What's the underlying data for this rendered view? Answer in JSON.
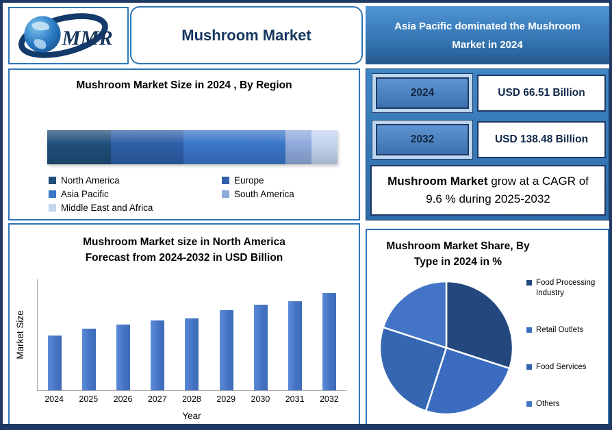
{
  "colors": {
    "frame": "#1F3864",
    "panelBorder": "#2E75B6",
    "bannerTop": "#4E94D4",
    "bannerBottom": "#2E6CA8",
    "statsTop": "#3F85C4",
    "statsBottom": "#2E6CA8",
    "buttonFrame": "#BDD7EE",
    "titleText": "#17375E",
    "barFill": "#4472C4"
  },
  "logo": {
    "text": "MMR"
  },
  "top": {
    "title": "Mushroom Market",
    "banner": "Asia Pacific dominated the Mushroom Market in 2024"
  },
  "stats": {
    "rows": [
      {
        "year": "2024",
        "value": "USD 66.51 Billion"
      },
      {
        "year": "2032",
        "value": "USD 138.48 Billion"
      }
    ],
    "cagr_bold": "Mushroom Market",
    "cagr_rest": " grow at a CAGR of 9.6 % during 2025-2032"
  },
  "chart_data": [
    {
      "id": "region-size",
      "type": "bar",
      "subtype": "stacked-horizontal-single",
      "title": "Mushroom Market Size in 2024 , By Region",
      "legend_position": "bottom",
      "series": [
        {
          "name": "North America",
          "value": 22,
          "color": "#1F4E79"
        },
        {
          "name": "Europe",
          "value": 25,
          "color": "#2E5FA8"
        },
        {
          "name": "Asia Pacific",
          "value": 35,
          "color": "#3A76C8"
        },
        {
          "name": "South America",
          "value": 9,
          "color": "#8FAADC"
        },
        {
          "name": "Middle East and Africa",
          "value": 9,
          "color": "#C5D5EE"
        }
      ]
    },
    {
      "id": "north-america-forecast",
      "type": "bar",
      "title": "Mushroom Market size in North America Forecast from 2024-2032 in USD Billion",
      "categories": [
        "2024",
        "2025",
        "2026",
        "2027",
        "2028",
        "2029",
        "2030",
        "2031",
        "2032"
      ],
      "values": [
        7.9,
        8.9,
        9.5,
        10.1,
        10.4,
        11.6,
        12.3,
        12.8,
        14.0
      ],
      "xlabel": "Year",
      "ylabel": "Market Size",
      "ylim": [
        0,
        16
      ],
      "grid": false
    },
    {
      "id": "share-by-type",
      "type": "pie",
      "title": "Mushroom Market Share, By Type in 2024 in %",
      "labels": [
        "Food Processing Industry",
        "Retail Outlets",
        "Food Services",
        "Others"
      ],
      "values": [
        30,
        25,
        25,
        20
      ],
      "colors": [
        "#24477E",
        "#3B6CC0",
        "#3566B2",
        "#4374C6"
      ],
      "legend_position": "right"
    }
  ]
}
